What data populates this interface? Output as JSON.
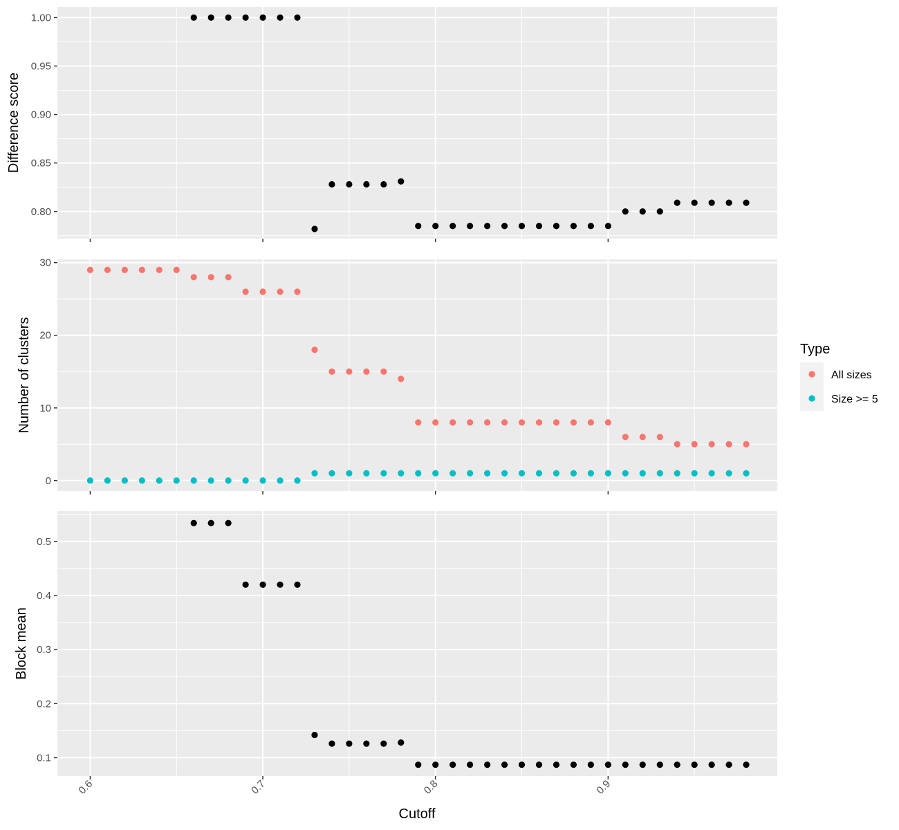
{
  "chart_data": {
    "type": "scatter",
    "xlabel": "Cutoff",
    "x_ticks": [
      0.6,
      0.7,
      0.8,
      0.9
    ],
    "x_tick_labels": [
      "0.6",
      "0.7",
      "0.8",
      "0.9"
    ],
    "xlim": [
      0.581,
      0.998
    ],
    "x": [
      0.6,
      0.61,
      0.62,
      0.63,
      0.64,
      0.65,
      0.66,
      0.67,
      0.68,
      0.69,
      0.7,
      0.71,
      0.72,
      0.73,
      0.74,
      0.75,
      0.76,
      0.77,
      0.78,
      0.79,
      0.8,
      0.81,
      0.82,
      0.83,
      0.84,
      0.85,
      0.86,
      0.87,
      0.88,
      0.89,
      0.9,
      0.91,
      0.92,
      0.93,
      0.94,
      0.95,
      0.96,
      0.97,
      0.98
    ],
    "background": "#ebebeb",
    "grid": true,
    "legend": {
      "title": "Type",
      "position": "right",
      "entries": [
        {
          "label": "All sizes",
          "color": "#F8766D"
        },
        {
          "label": "Size >= 5",
          "color": "#00BFC4"
        }
      ]
    },
    "panels": [
      {
        "ylabel": "Difference score",
        "ylim": [
          0.772,
          1.011
        ],
        "y_ticks": [
          0.8,
          0.85,
          0.9,
          0.95,
          1.0
        ],
        "y_tick_labels": [
          "0.80",
          "0.85",
          "0.90",
          "0.95",
          "1.00"
        ],
        "series": [
          {
            "color": "#000000",
            "x": [
              0.66,
              0.67,
              0.68,
              0.69,
              0.7,
              0.71,
              0.72,
              0.73,
              0.74,
              0.75,
              0.76,
              0.77,
              0.78,
              0.79,
              0.8,
              0.81,
              0.82,
              0.83,
              0.84,
              0.85,
              0.86,
              0.87,
              0.88,
              0.89,
              0.9,
              0.91,
              0.92,
              0.93,
              0.94,
              0.95,
              0.96,
              0.97,
              0.98
            ],
            "y": [
              1.0,
              1.0,
              1.0,
              1.0,
              1.0,
              1.0,
              1.0,
              0.782,
              0.828,
              0.828,
              0.828,
              0.828,
              0.831,
              0.785,
              0.785,
              0.785,
              0.785,
              0.785,
              0.785,
              0.785,
              0.785,
              0.785,
              0.785,
              0.785,
              0.785,
              0.8,
              0.8,
              0.8,
              0.809,
              0.809,
              0.809,
              0.809,
              0.809
            ]
          }
        ]
      },
      {
        "ylabel": "Number of clusters",
        "ylim": [
          -1.45,
          30.45
        ],
        "y_ticks": [
          0,
          10,
          20,
          30
        ],
        "y_tick_labels": [
          "0",
          "10",
          "20",
          "30"
        ],
        "series": [
          {
            "name": "All sizes",
            "color": "#F8766D",
            "x": [
              0.6,
              0.61,
              0.62,
              0.63,
              0.64,
              0.65,
              0.66,
              0.67,
              0.68,
              0.69,
              0.7,
              0.71,
              0.72,
              0.73,
              0.74,
              0.75,
              0.76,
              0.77,
              0.78,
              0.79,
              0.8,
              0.81,
              0.82,
              0.83,
              0.84,
              0.85,
              0.86,
              0.87,
              0.88,
              0.89,
              0.9,
              0.91,
              0.92,
              0.93,
              0.94,
              0.95,
              0.96,
              0.97,
              0.98
            ],
            "y": [
              29,
              29,
              29,
              29,
              29,
              29,
              28,
              28,
              28,
              26,
              26,
              26,
              26,
              18,
              15,
              15,
              15,
              15,
              14,
              8,
              8,
              8,
              8,
              8,
              8,
              8,
              8,
              8,
              8,
              8,
              8,
              6,
              6,
              6,
              5,
              5,
              5,
              5,
              5
            ]
          },
          {
            "name": "Size >= 5",
            "color": "#00BFC4",
            "x": [
              0.6,
              0.61,
              0.62,
              0.63,
              0.64,
              0.65,
              0.66,
              0.67,
              0.68,
              0.69,
              0.7,
              0.71,
              0.72,
              0.73,
              0.74,
              0.75,
              0.76,
              0.77,
              0.78,
              0.79,
              0.8,
              0.81,
              0.82,
              0.83,
              0.84,
              0.85,
              0.86,
              0.87,
              0.88,
              0.89,
              0.9,
              0.91,
              0.92,
              0.93,
              0.94,
              0.95,
              0.96,
              0.97,
              0.98
            ],
            "y": [
              0,
              0,
              0,
              0,
              0,
              0,
              0,
              0,
              0,
              0,
              0,
              0,
              0,
              1,
              1,
              1,
              1,
              1,
              1,
              1,
              1,
              1,
              1,
              1,
              1,
              1,
              1,
              1,
              1,
              1,
              1,
              1,
              1,
              1,
              1,
              1,
              1,
              1,
              1
            ]
          }
        ]
      },
      {
        "ylabel": "Block mean",
        "ylim": [
          0.066,
          0.556
        ],
        "y_ticks": [
          0.1,
          0.2,
          0.3,
          0.4,
          0.5
        ],
        "y_tick_labels": [
          "0.1",
          "0.2",
          "0.3",
          "0.4",
          "0.5"
        ],
        "series": [
          {
            "color": "#000000",
            "x": [
              0.66,
              0.67,
              0.68,
              0.69,
              0.7,
              0.71,
              0.72,
              0.73,
              0.74,
              0.75,
              0.76,
              0.77,
              0.78,
              0.79,
              0.8,
              0.81,
              0.82,
              0.83,
              0.84,
              0.85,
              0.86,
              0.87,
              0.88,
              0.89,
              0.9,
              0.91,
              0.92,
              0.93,
              0.94,
              0.95,
              0.96,
              0.97,
              0.98
            ],
            "y": [
              0.534,
              0.534,
              0.534,
              0.42,
              0.42,
              0.42,
              0.42,
              0.142,
              0.126,
              0.126,
              0.126,
              0.126,
              0.128,
              0.087,
              0.087,
              0.087,
              0.087,
              0.087,
              0.087,
              0.087,
              0.087,
              0.087,
              0.087,
              0.087,
              0.087,
              0.087,
              0.087,
              0.087,
              0.087,
              0.087,
              0.087,
              0.087,
              0.087
            ]
          }
        ]
      }
    ]
  }
}
